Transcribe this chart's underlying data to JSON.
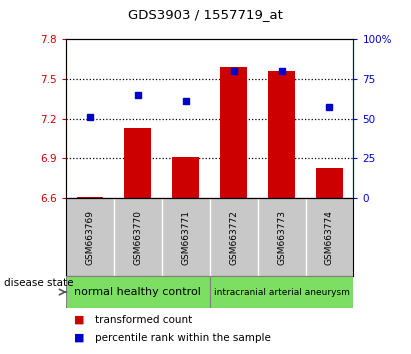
{
  "title": "GDS3903 / 1557719_at",
  "samples": [
    "GSM663769",
    "GSM663770",
    "GSM663771",
    "GSM663772",
    "GSM663773",
    "GSM663774"
  ],
  "transformed_count": [
    6.61,
    7.13,
    6.91,
    7.59,
    7.56,
    6.83
  ],
  "percentile_rank": [
    51,
    65,
    61,
    80,
    80,
    57
  ],
  "ylim_left": [
    6.6,
    7.8
  ],
  "ylim_right": [
    0,
    100
  ],
  "yticks_left": [
    6.6,
    6.9,
    7.2,
    7.5,
    7.8
  ],
  "yticks_right": [
    0,
    25,
    50,
    75,
    100
  ],
  "ytick_labels_left": [
    "6.6",
    "6.9",
    "7.2",
    "7.5",
    "7.8"
  ],
  "ytick_labels_right": [
    "0",
    "25",
    "50",
    "75",
    "100%"
  ],
  "bar_color": "#cc0000",
  "dot_color": "#0000cc",
  "bar_base": 6.6,
  "group1_label": "normal healthy control",
  "group2_label": "intracranial arterial aneurysm",
  "group_color": "#7cdf64",
  "sample_bg": "#c8c8c8",
  "disease_label": "disease state",
  "legend_bar": "transformed count",
  "legend_dot": "percentile rank within the sample",
  "label_color_left": "#cc0000",
  "label_color_right": "#0000cc",
  "plot_bg": "#ffffff",
  "grid_dotted_color": "#000000"
}
